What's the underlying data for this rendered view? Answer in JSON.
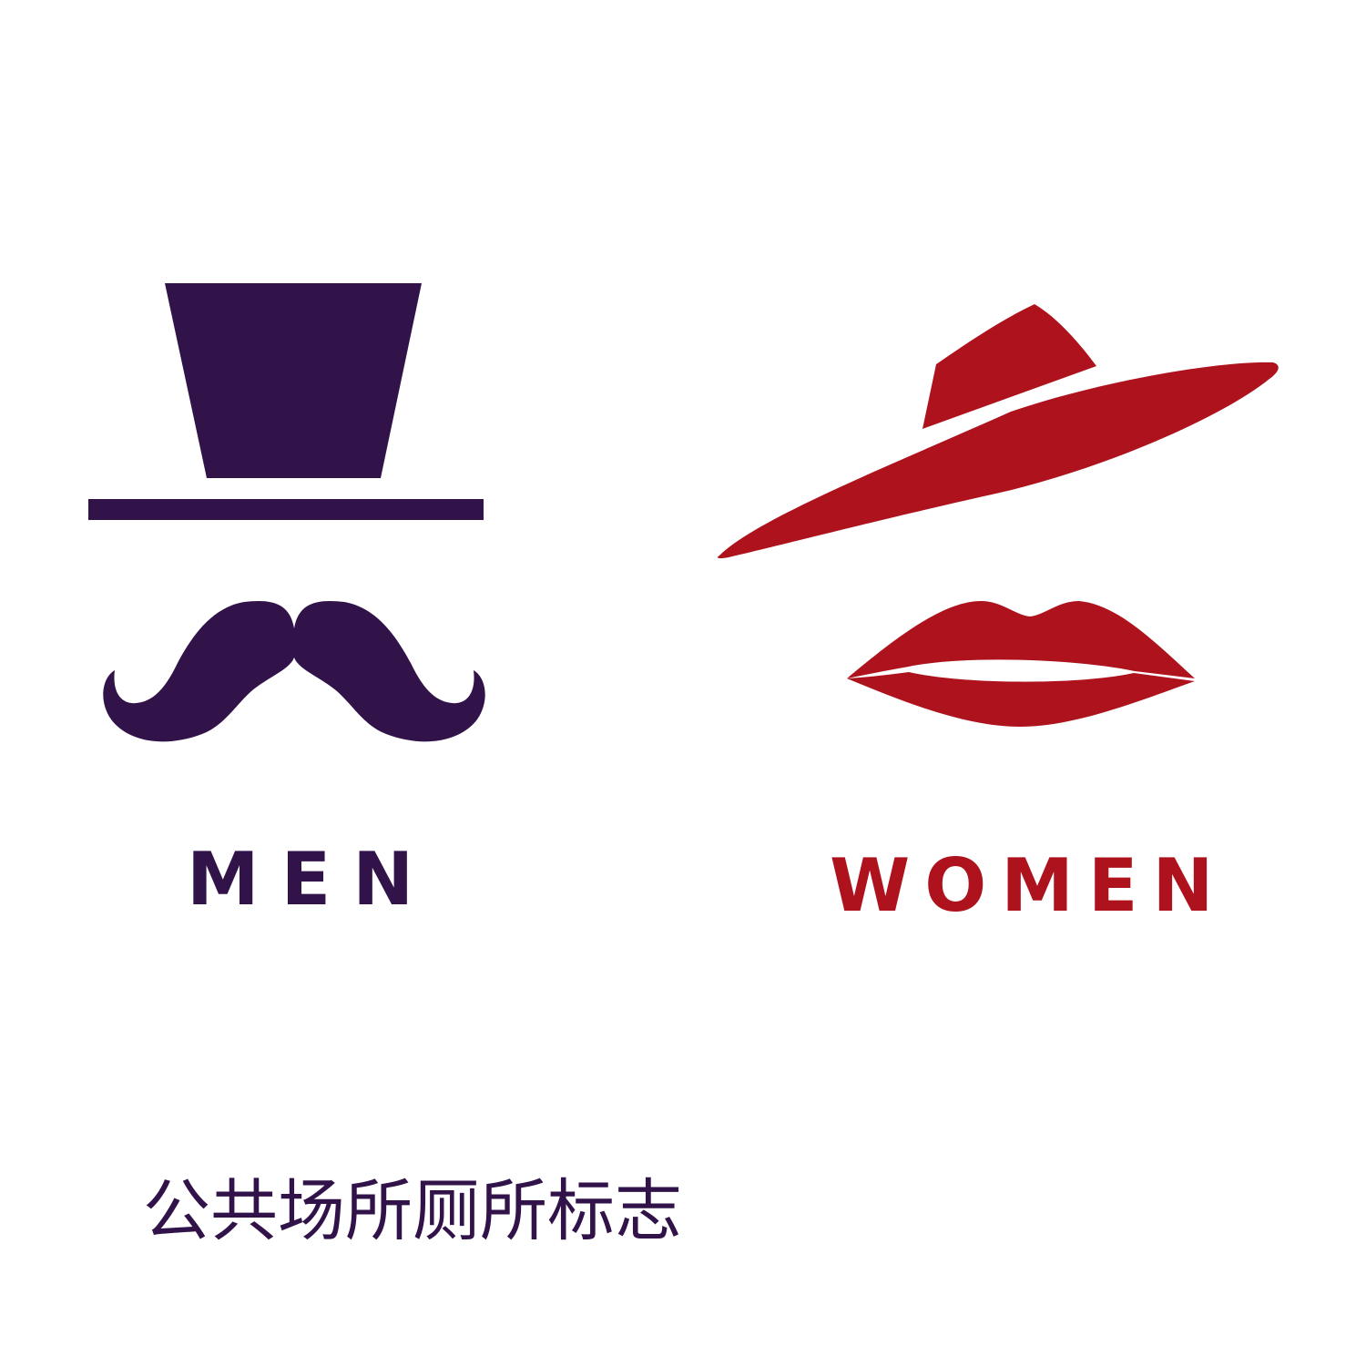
{
  "colors": {
    "men": "#31134a",
    "women": "#ae131d",
    "caption": "#31134a",
    "background": "#ffffff"
  },
  "icons": {
    "men": [
      "top-hat-icon",
      "mustache-icon"
    ],
    "women": [
      "wide-brim-hat-icon",
      "lips-icon"
    ]
  },
  "men": {
    "label": "MEN"
  },
  "women": {
    "label": "WOMEN"
  },
  "caption": "公共场所厕所标志"
}
